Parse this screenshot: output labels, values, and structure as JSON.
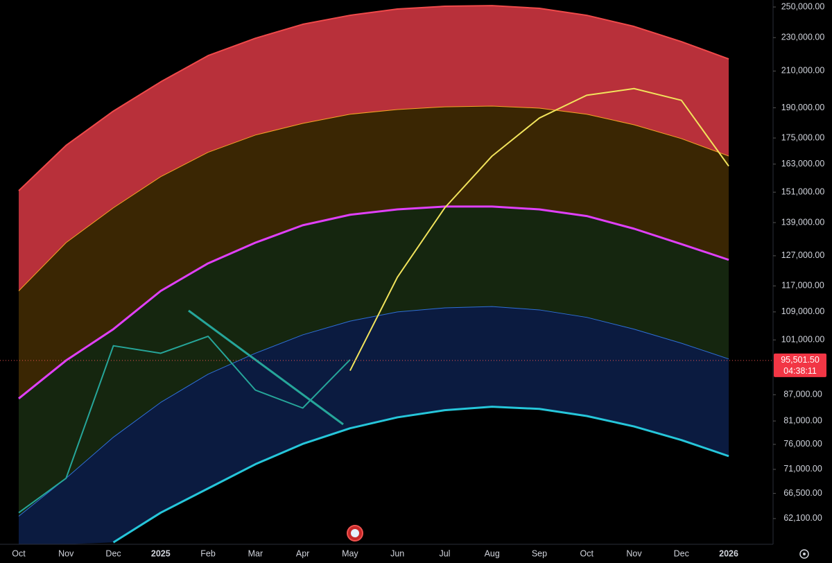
{
  "chart_data": {
    "type": "line",
    "log_scale": true,
    "categories": [
      "Oct",
      "Nov",
      "Dec",
      "2025",
      "Feb",
      "Mar",
      "Apr",
      "May",
      "Jun",
      "Jul",
      "Aug",
      "Sep",
      "Oct",
      "Nov",
      "Dec",
      "2026"
    ],
    "ylim": [
      57900,
      254800
    ],
    "yticks": [
      {
        "value": 250000,
        "label": "250,000.00"
      },
      {
        "value": 230000,
        "label": "230,000.00"
      },
      {
        "value": 210000,
        "label": "210,000.00"
      },
      {
        "value": 190000,
        "label": "190,000.00"
      },
      {
        "value": 175000,
        "label": "175,000.00"
      },
      {
        "value": 163000,
        "label": "163,000.00"
      },
      {
        "value": 151000,
        "label": "151,000.00"
      },
      {
        "value": 139000,
        "label": "139,000.00"
      },
      {
        "value": 127000,
        "label": "127,000.00"
      },
      {
        "value": 117000,
        "label": "117,000.00"
      },
      {
        "value": 109000,
        "label": "109,000.00"
      },
      {
        "value": 101000,
        "label": "101,000.00"
      },
      {
        "value": 87000,
        "label": "87,000.00"
      },
      {
        "value": 81000,
        "label": "81,000.00"
      },
      {
        "value": 76000,
        "label": "76,000.00"
      },
      {
        "value": 71000,
        "label": "71,000.00"
      },
      {
        "value": 66500,
        "label": "66,500.00"
      },
      {
        "value": 62100,
        "label": "62,100.00"
      }
    ],
    "series": [
      {
        "color": "#f04a4a",
        "fill": "#b8303a",
        "width": 2,
        "values": [
          151600,
          171500,
          188300,
          203900,
          219000,
          229600,
          238500,
          244400,
          248600,
          250500,
          250900,
          249100,
          244400,
          237100,
          227500,
          217000
        ]
      },
      {
        "color": "#f5a524",
        "fill": "#3a2603",
        "width": 1,
        "values": [
          115400,
          131600,
          144700,
          157500,
          168300,
          176400,
          182100,
          186700,
          189100,
          190500,
          190900,
          189800,
          186700,
          181400,
          174700,
          166600
        ]
      },
      {
        "color": "#e040fb",
        "fill": "#15260f",
        "width": 3,
        "values": [
          86100,
          95500,
          104000,
          115400,
          124400,
          131600,
          138000,
          142000,
          144100,
          145200,
          145200,
          144100,
          141500,
          136700,
          131100,
          125600
        ]
      },
      {
        "color": "#2f6fd8",
        "fill": "#0b1b40",
        "width": 1,
        "values": [
          62500,
          69300,
          77500,
          85200,
          92000,
          97400,
          102400,
          106300,
          109000,
          110200,
          110600,
          109600,
          107400,
          104000,
          100100,
          95900
        ]
      },
      {
        "color": "#26c6da",
        "width": 3,
        "values": [
          null,
          null,
          58200,
          63100,
          67400,
          72000,
          76100,
          79400,
          81800,
          83400,
          84200,
          83700,
          82100,
          79800,
          76900,
          73600
        ]
      },
      {
        "color": "#f2e45c",
        "width": 2,
        "values": [
          null,
          null,
          null,
          null,
          null,
          null,
          null,
          92900,
          119800,
          144700,
          166600,
          184800,
          196600,
          200200,
          193900,
          162100
        ]
      },
      {
        "color": "#26a69a",
        "width": 2,
        "values": [
          63100,
          69300,
          99400,
          97400,
          102000,
          88100,
          83900,
          95700,
          null,
          null,
          null,
          null,
          null,
          null,
          null,
          null
        ]
      }
    ],
    "last_price": {
      "value": 95501.5,
      "label": "95,501.50"
    },
    "countdown": "04:38:11"
  }
}
